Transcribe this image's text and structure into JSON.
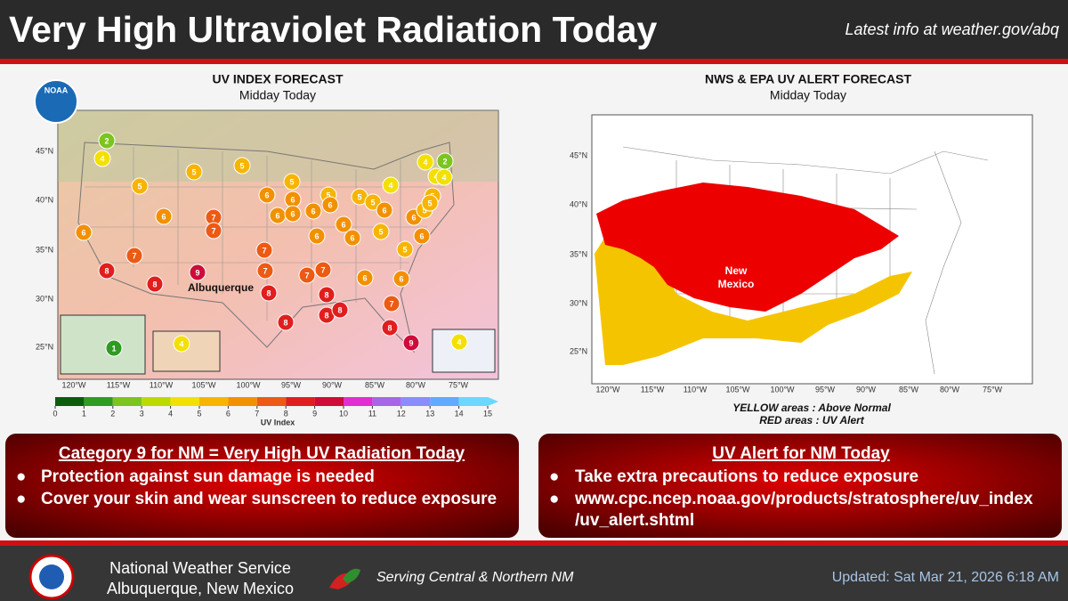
{
  "header": {
    "title": "Very High Ultraviolet Radiation Today",
    "link": "Latest info at weather.gov/abq"
  },
  "left_panel": {
    "title": "UV INDEX FORECAST",
    "subtitle": "Midday Today",
    "logo_text": "NOAA",
    "lat_labels": [
      "45°N",
      "40°N",
      "35°N",
      "30°N",
      "25°N"
    ],
    "lon_labels": [
      "120°W",
      "115°W",
      "110°W",
      "105°W",
      "100°W",
      "95°W",
      "90°W",
      "85°W",
      "80°W",
      "75°W"
    ],
    "markers": [
      2,
      4,
      5,
      5,
      5,
      5,
      6,
      6,
      5,
      6,
      5,
      5,
      4,
      4,
      2,
      4,
      4,
      5,
      6,
      7,
      7,
      6,
      6,
      6,
      6,
      6,
      6,
      5,
      5,
      6,
      6,
      6,
      5,
      6,
      7,
      7,
      5,
      8,
      9,
      8,
      7,
      7,
      7,
      6,
      6,
      8,
      8,
      7,
      8,
      8,
      8,
      8,
      9,
      1,
      4,
      4
    ],
    "city_label": "Albuquerque",
    "colorbar": {
      "ticks": [
        0,
        1,
        2,
        3,
        4,
        5,
        6,
        7,
        8,
        9,
        10,
        11,
        12,
        13,
        14,
        15
      ],
      "colors": [
        "#0b5d0b",
        "#2f9b22",
        "#7cc41f",
        "#bcd900",
        "#f3e000",
        "#f7b400",
        "#f39000",
        "#ec5a14",
        "#e11e1e",
        "#cf0b3a",
        "#e02ed0",
        "#a866e6",
        "#8a8cff",
        "#62aaff",
        "#6ad8ff"
      ],
      "label": "UV Index"
    }
  },
  "right_panel": {
    "title": "NWS & EPA UV ALERT FORECAST",
    "subtitle": "Midday Today",
    "lat_labels": [
      "45°N",
      "40°N",
      "35°N",
      "30°N",
      "25°N"
    ],
    "lon_labels": [
      "120°W",
      "115°W",
      "110°W",
      "105°W",
      "100°W",
      "95°W",
      "90°W",
      "85°W",
      "80°W",
      "75°W"
    ],
    "state_label": [
      "New",
      "Mexico"
    ],
    "legend": [
      "YELLOW areas : Above Normal",
      "RED areas : UV Alert"
    ]
  },
  "left_box": {
    "heading": "Category 9 for NM = Very High UV Radiation Today",
    "bullets": [
      "Protection against sun damage is needed",
      "Cover your skin and wear sunscreen to reduce exposure"
    ]
  },
  "right_box": {
    "heading": "UV Alert for NM Today",
    "bullets": [
      "Take extra precautions to reduce exposure",
      "www.cpc.ncep.noaa.gov/products/stratosphere/uv_index",
      "/uv_alert.shtml"
    ]
  },
  "footer": {
    "org": [
      "National Weather Service",
      "Albuquerque, New Mexico"
    ],
    "tagline": "Serving Central & Northern NM",
    "updated": "Updated: Sat Mar 21, 2026 6:18 AM"
  }
}
